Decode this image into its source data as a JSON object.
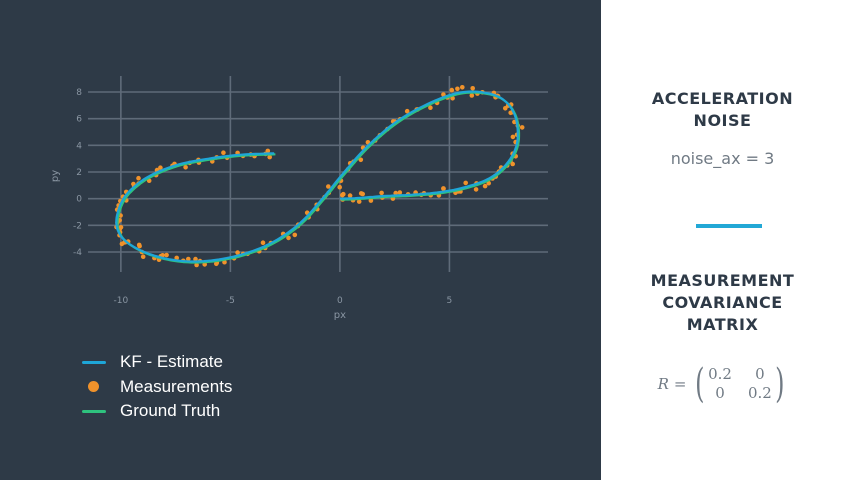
{
  "chart_data": {
    "type": "scatter",
    "xlabel": "px",
    "ylabel": "py",
    "xlim": [
      -11.5,
      9.5
    ],
    "ylim": [
      -5.5,
      8.9
    ],
    "x_ticks": [
      -10,
      -5,
      0,
      5
    ],
    "x_tick_labels": [
      "-10",
      "-5",
      "0",
      "5"
    ],
    "y_ticks": [
      -4,
      -2,
      0,
      2,
      4,
      6,
      8
    ],
    "y_tick_labels": [
      "-4",
      "-2",
      "0",
      "2",
      "4",
      "6",
      "8"
    ],
    "grid": true,
    "legend_position": "bottom-left",
    "series": [
      {
        "name": "KF - Estimate",
        "kind": "line",
        "color": "#1ea6d8"
      },
      {
        "name": "Measurements",
        "kind": "markers",
        "color": "#f0922b"
      },
      {
        "name": "Ground Truth",
        "kind": "line",
        "color": "#2ec27e"
      }
    ],
    "path": {
      "description_of_curve": "figure-eight",
      "x": [
        -3.0,
        -4.5,
        -6.0,
        -7.5,
        -8.8,
        -9.7,
        -10.1,
        -10.2,
        -9.9,
        -9.2,
        -8.2,
        -7.0,
        -5.7,
        -4.3,
        -3.0,
        -1.8,
        -0.8,
        0.2,
        1.3,
        2.6,
        4.0,
        5.3,
        6.4,
        7.4,
        8.0,
        8.1,
        7.7,
        6.9,
        5.8,
        4.6,
        3.3,
        2.0,
        0.8,
        0.0
      ],
      "y": [
        3.4,
        3.3,
        3.0,
        2.5,
        1.6,
        0.4,
        -0.8,
        -2.0,
        -3.0,
        -3.8,
        -4.4,
        -4.7,
        -4.6,
        -4.1,
        -3.2,
        -1.8,
        0.0,
        2.0,
        4.0,
        5.8,
        7.1,
        7.9,
        8.0,
        7.5,
        6.2,
        4.3,
        2.8,
        1.6,
        0.9,
        0.5,
        0.3,
        0.2,
        0.05,
        0.0
      ]
    }
  },
  "legend": {
    "estimate_label": "KF - Estimate",
    "measurements_label": "Measurements",
    "truth_label": "Ground Truth"
  },
  "panel": {
    "accel_heading_line1": "ACCELERATION",
    "accel_heading_line2": "NOISE",
    "noise_text": "noise_ax = 3",
    "cov_heading_line1": "MEASUREMENT",
    "cov_heading_line2": "COVARIANCE",
    "cov_heading_line3": "MATRIX",
    "matrix_var": "R",
    "matrix_eq": "=",
    "matrix": [
      [
        "0.2",
        "0"
      ],
      [
        "0",
        "0.2"
      ]
    ]
  },
  "colors": {
    "background_left": "#2e3a47",
    "grid": "#5f6b79",
    "accent": "#22a8d6"
  }
}
